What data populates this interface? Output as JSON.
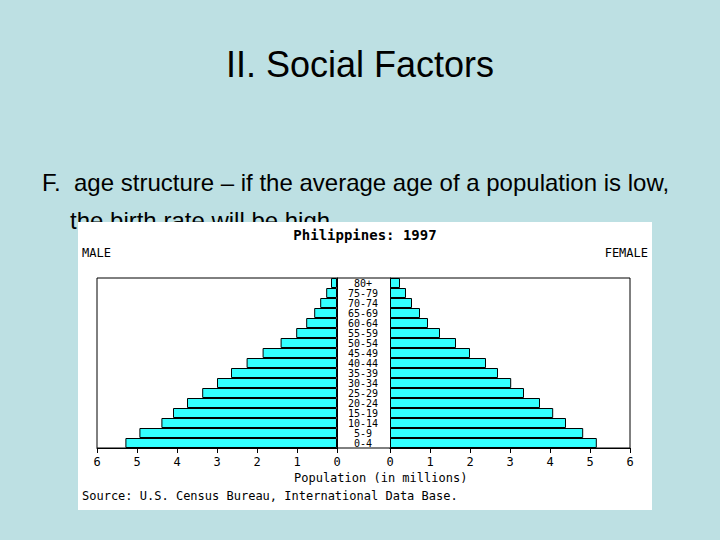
{
  "slide": {
    "title": "II.  Social Factors",
    "text": "F.  age structure – if the average age of a population is low, the birth rate will be high"
  },
  "chart_data": {
    "type": "bar",
    "orientation": "horizontal",
    "title": "Philippines: 1997",
    "x_label": "Population (in millions)",
    "source": "Source: U.S. Census Bureau, International Data Base.",
    "categories": [
      "0-4",
      "5-9",
      "10-14",
      "15-19",
      "20-24",
      "25-29",
      "30-34",
      "35-39",
      "40-44",
      "45-49",
      "50-54",
      "55-59",
      "60-64",
      "65-69",
      "70-74",
      "75-79",
      "80+"
    ],
    "series": [
      {
        "name": "MALE",
        "color": "#33ffff",
        "values": [
          5.29,
          4.94,
          4.39,
          4.1,
          3.75,
          3.37,
          3.0,
          2.65,
          2.26,
          1.86,
          1.41,
          1.02,
          0.77,
          0.57,
          0.42,
          0.27,
          0.15
        ]
      },
      {
        "name": "FEMALE",
        "color": "#33ffff",
        "values": [
          5.17,
          4.83,
          4.4,
          4.08,
          3.75,
          3.35,
          3.03,
          2.7,
          2.4,
          2.0,
          1.65,
          1.25,
          0.95,
          0.75,
          0.55,
          0.4,
          0.25
        ]
      }
    ],
    "xlim": [
      0,
      6
    ],
    "xticks": [
      0,
      1,
      2,
      3,
      4,
      5,
      6
    ],
    "grid": false
  }
}
